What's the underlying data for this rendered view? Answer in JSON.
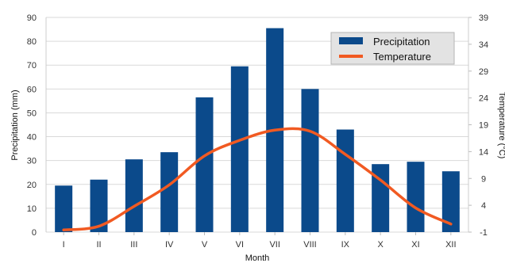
{
  "chart_data": {
    "type": "bar+line",
    "categories": [
      "I",
      "II",
      "III",
      "IV",
      "V",
      "VI",
      "VII",
      "VIII",
      "IX",
      "X",
      "XI",
      "XII"
    ],
    "series": [
      {
        "name": "Precipitation",
        "type": "bar",
        "axis": "left",
        "color": "#0b4a8b",
        "values": [
          19.5,
          22,
          30.5,
          33.5,
          56.5,
          69.5,
          85.5,
          60,
          43,
          28.5,
          29.5,
          25.5
        ]
      },
      {
        "name": "Temperature",
        "type": "line",
        "axis": "right",
        "color": "#f15a22",
        "values": [
          -0.6,
          0.1,
          3.8,
          7.8,
          13.2,
          16.1,
          18.0,
          17.8,
          13.5,
          8.7,
          3.5,
          0.5
        ]
      }
    ],
    "xlabel": "Month",
    "ylabel_left": "Precipitation (mm)",
    "ylabel_right": "Temperature (°C)",
    "ylim_left": [
      0,
      90
    ],
    "yticks_left": [
      "0",
      "10",
      "20",
      "30",
      "40",
      "50",
      "60",
      "70",
      "80",
      "90"
    ],
    "ylim_right": [
      -1,
      39
    ],
    "yticks_right": [
      "-1",
      "4",
      "9",
      "14",
      "19",
      "24",
      "29",
      "34",
      "39"
    ],
    "grid": true,
    "legend_position": "top-right"
  }
}
